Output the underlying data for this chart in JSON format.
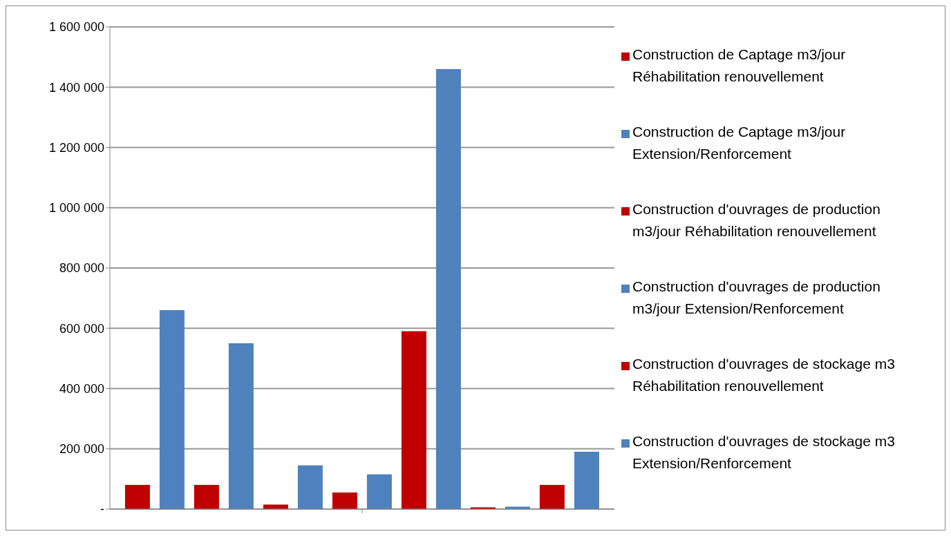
{
  "chart_data": {
    "type": "bar",
    "categories": [
      null
    ],
    "series": [
      {
        "name": "Construction de Captage m3/jour Réhabilitation renouvellement",
        "color": "#c00000",
        "values": [
          80000
        ]
      },
      {
        "name": "Construction de Captage m3/jour Extension/Renforcement",
        "color": "#4f81bd",
        "values": [
          660000
        ]
      },
      {
        "name": "Construction d'ouvrages de production m3/jour Réhabilitation renouvellement",
        "color": "#c00000",
        "values": [
          80000
        ]
      },
      {
        "name": "Construction d'ouvrages de production m3/jour Extension/Renforcement",
        "color": "#4f81bd",
        "values": [
          550000
        ]
      },
      {
        "name": "Construction d'ouvrages de stockage m3 Réhabilitation renouvellement",
        "color": "#c00000",
        "values": [
          15000
        ]
      },
      {
        "name": "Construction d'ouvrages de stockage m3 Extension/Renforcement",
        "color": "#4f81bd",
        "values": [
          145000
        ]
      },
      {
        "color": "#c00000",
        "values": [
          55000
        ]
      },
      {
        "color": "#4f81bd",
        "values": [
          115000
        ]
      },
      {
        "color": "#c00000",
        "values": [
          590000
        ]
      },
      {
        "color": "#4f81bd",
        "values": [
          1460000
        ]
      },
      {
        "color": "#c00000",
        "values": [
          6000
        ]
      },
      {
        "color": "#4f81bd",
        "values": [
          8000
        ]
      },
      {
        "color": "#c00000",
        "values": [
          80000
        ]
      },
      {
        "color": "#4f81bd",
        "values": [
          190000
        ]
      }
    ],
    "ylim": [
      0,
      1600000
    ],
    "yticks": [
      {
        "value": 0,
        "label": "-"
      },
      {
        "value": 200000,
        "label": "200 000"
      },
      {
        "value": 400000,
        "label": "400 000"
      },
      {
        "value": 600000,
        "label": "600 000"
      },
      {
        "value": 800000,
        "label": "800 000"
      },
      {
        "value": 1000000,
        "label": "1 000 000"
      },
      {
        "value": 1200000,
        "label": "1 200 000"
      },
      {
        "value": 1400000,
        "label": "1 400 000"
      },
      {
        "value": 1600000,
        "label": "1 600 000"
      }
    ],
    "grid": "y",
    "legend": "right"
  }
}
